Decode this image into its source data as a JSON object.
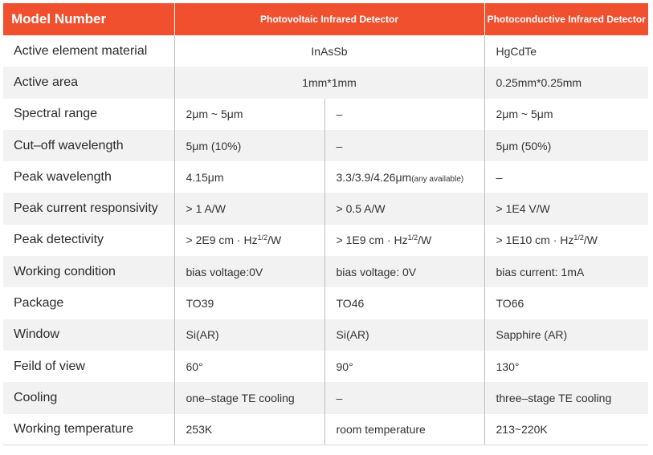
{
  "header": {
    "model_number": "Model Number",
    "photovoltaic": "Photovoltaic Infrared Detector",
    "photoconductive": "Photoconductive  Infrared Detector"
  },
  "rows": [
    {
      "label": "Active element material",
      "pv": "InAsSb",
      "pc": "HgCdTe"
    },
    {
      "label": "Active area",
      "pv": "1mm*1mm",
      "pc": "0.25mm*0.25mm"
    },
    {
      "label": "Spectral range",
      "pv1": "2μm ~ 5μm",
      "pv2": "–",
      "pc": "2μm ~ 5μm"
    },
    {
      "label": "Cut–off wavelength",
      "pv1": "5μm (10%)",
      "pv2": "–",
      "pc": "5μm (50%)"
    },
    {
      "label": "Peak wavelength",
      "pv1": "4.15μm",
      "pv2": "3.3/3.9/4.26μm",
      "pv2_note": "(any available)",
      "pc": "–"
    },
    {
      "label": "Peak current responsivity",
      "pv1": "> 1 A/W",
      "pv2": "> 0.5 A/W",
      "pc": "> 1E4 V/W"
    },
    {
      "label": "Peak detectivity",
      "pv1": "> 2E9 cm · Hz",
      "pv2": "> 1E9 cm · Hz",
      "pc": "> 1E10 cm · Hz",
      "exp": "1/2",
      "unit_tail": "/W"
    },
    {
      "label": "Working condition",
      "pv1": "bias voltage:0V",
      "pv2": "bias voltage: 0V",
      "pc": "bias current:   1mA"
    },
    {
      "label": "Package",
      "pv1": "TO39",
      "pv2": "TO46",
      "pc": "TO66"
    },
    {
      "label": "Window",
      "pv1": "Si(AR)",
      "pv2": "Si(AR)",
      "pc": "Sapphire (AR)"
    },
    {
      "label": "Feild of view",
      "pv1": "60°",
      "pv2": "90°",
      "pc": "130°"
    },
    {
      "label": "Cooling",
      "pv1": "one–stage TE cooling",
      "pv2": "–",
      "pc": "three–stage TE cooling"
    },
    {
      "label": "Working temperature",
      "pv1": "253K",
      "pv2": "room temperature",
      "pc": "213~220K"
    }
  ],
  "colors": {
    "header_bg": "#f1502f",
    "row_shade": "#f2f2f2"
  }
}
